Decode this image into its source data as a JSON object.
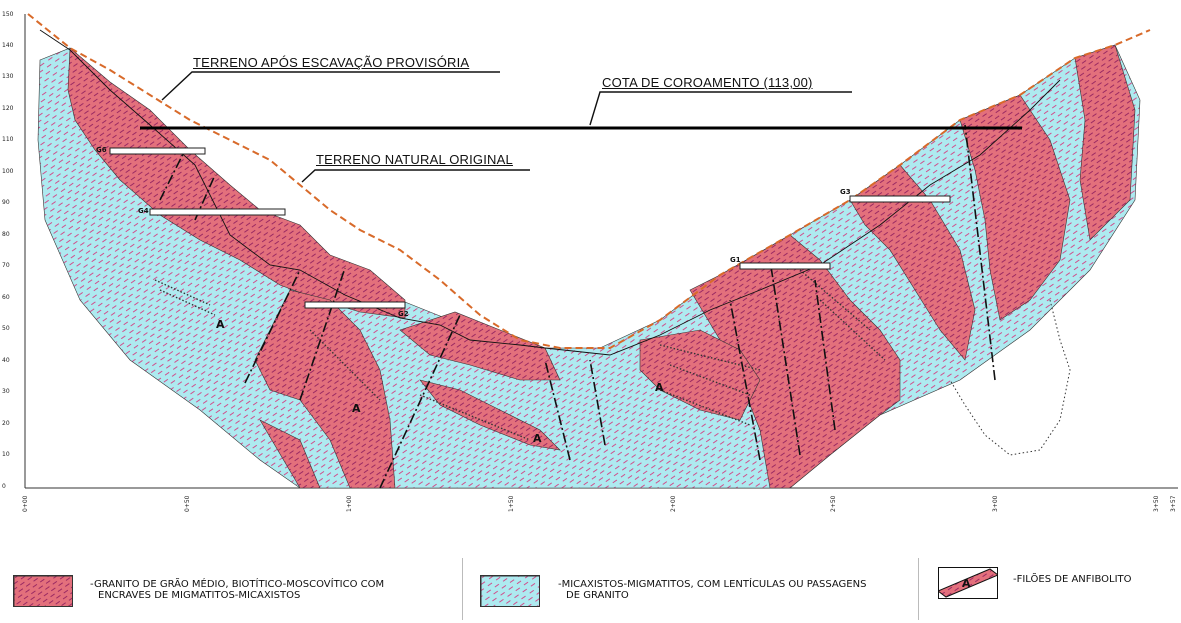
{
  "annotations": {
    "terreno_escavacao": "TERRENO APÓS ESCAVAÇÃO PROVISÓRIA",
    "cota_coroamento": "COTA DE COROAMENTO (113,00)",
    "terreno_natural": "TERRENO NATURAL ORIGINAL"
  },
  "axis": {
    "y_ticks": [
      "150",
      "140",
      "130",
      "120",
      "110",
      "100",
      "90",
      "80",
      "70",
      "60",
      "50",
      "40",
      "30",
      "20",
      "10",
      "0"
    ],
    "x_ticks": [
      "0+00",
      "0+50",
      "1+00",
      "1+50",
      "2+00",
      "2+50",
      "3+00",
      "3+50",
      "3+57"
    ]
  },
  "borehole_labels": [
    "G6",
    "G4",
    "G2",
    "G1",
    "G3"
  ],
  "amphibolite_marks": [
    "A",
    "A",
    "A",
    "A"
  ],
  "legend": {
    "granito": [
      "-GRANITO DE GRÃO MÉDIO, BIOTÍTICO-MOSCOVÍTICO COM",
      "ENCRAVES DE MIGMATITOS-MICAXISTOS"
    ],
    "micaxistos": [
      "-MICAXISTOS-MIGMATITOS, COM LENTÍCULAS OU PASSAGENS",
      "DE GRANITO"
    ],
    "filoes": [
      "-FILÕES DE ANFIBOLITO"
    ],
    "filoes_symbol": "A"
  },
  "colors": {
    "granite": "#e3707c",
    "granite_hatch": "#9b2a63",
    "schist": "#aeeaf0",
    "schist_hatch": "#d0508c",
    "original_ground": "#d86a2a",
    "crest_line": "#000000"
  }
}
